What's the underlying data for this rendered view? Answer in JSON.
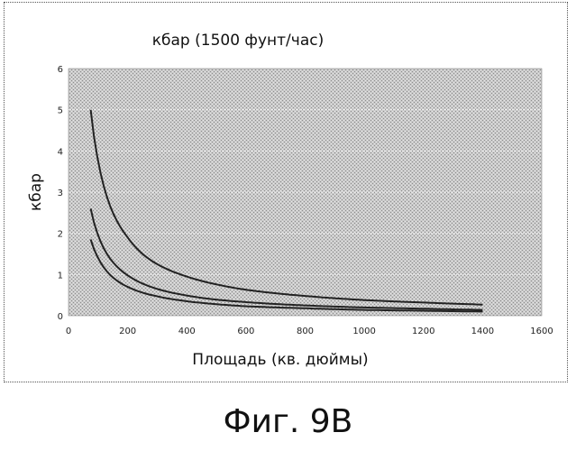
{
  "chart_data": {
    "type": "line",
    "title": "кбар (1500 фунт/час)",
    "xlabel": "Площадь (кв. дюймы)",
    "ylabel": "кбар",
    "xlim": [
      0,
      1600
    ],
    "ylim": [
      0,
      6
    ],
    "xticks": [
      "0",
      "200",
      "400",
      "600",
      "800",
      "1000",
      "1200",
      "1400",
      "1600"
    ],
    "yticks": [
      "0",
      "1",
      "2",
      "3",
      "4",
      "5",
      "6"
    ],
    "grid": true,
    "legend": "none",
    "plot_background": "#c8c8c8",
    "line_color": "#222222",
    "series": [
      {
        "x": [
          75,
          100,
          150,
          200,
          250,
          300,
          400,
          500,
          600,
          800,
          1000,
          1200,
          1400
        ],
        "values": [
          5.0,
          3.75,
          2.5,
          1.9,
          1.5,
          1.25,
          0.95,
          0.76,
          0.63,
          0.48,
          0.38,
          0.32,
          0.27
        ]
      },
      {
        "x": [
          75,
          100,
          150,
          200,
          250,
          300,
          400,
          500,
          600,
          800,
          1000,
          1200,
          1400
        ],
        "values": [
          2.6,
          1.95,
          1.3,
          0.98,
          0.78,
          0.65,
          0.49,
          0.39,
          0.33,
          0.25,
          0.2,
          0.17,
          0.14
        ]
      },
      {
        "x": [
          75,
          100,
          150,
          200,
          250,
          300,
          400,
          500,
          600,
          800,
          1000,
          1200,
          1400
        ],
        "values": [
          1.85,
          1.4,
          0.93,
          0.7,
          0.56,
          0.47,
          0.35,
          0.28,
          0.23,
          0.18,
          0.14,
          0.12,
          0.1
        ]
      }
    ]
  },
  "figure_caption": "Фиг. 9B"
}
